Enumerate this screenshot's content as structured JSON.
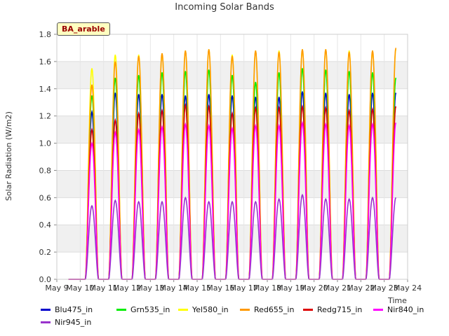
{
  "chart_data": {
    "type": "line",
    "title": "Incoming Solar Bands",
    "xlabel": "Time",
    "ylabel": "Solar Radiation (W/m2)",
    "annotation": "BA_arable",
    "ylim": [
      0,
      1.8
    ],
    "yticks": [
      "0.0",
      "0.2",
      "0.4",
      "0.6",
      "0.8",
      "1.0",
      "1.2",
      "1.4",
      "1.6",
      "1.8"
    ],
    "xticks": [
      "May 9",
      "May 10",
      "May 11",
      "May 12",
      "May 13",
      "May 14",
      "May 15",
      "May 16",
      "May 17",
      "May 18",
      "May 19",
      "May 20",
      "May 21",
      "May 22",
      "May 23",
      "May 24"
    ],
    "days": [
      "May 10",
      "May 11",
      "May 12",
      "May 13",
      "May 14",
      "May 15",
      "May 16",
      "May 17",
      "May 18",
      "May 19",
      "May 20",
      "May 21",
      "May 22",
      "May 23"
    ],
    "grid": "horizontal bands",
    "legend_position": "bottom",
    "series": [
      {
        "name": "Blu475_in",
        "color": "#0000cc",
        "daily_peaks": [
          1.23,
          1.37,
          1.36,
          1.36,
          1.35,
          1.36,
          1.35,
          1.34,
          1.34,
          1.38,
          1.37,
          1.36,
          1.37,
          1.37
        ]
      },
      {
        "name": "Grn535_in",
        "color": "#00ee00",
        "daily_peaks": [
          1.35,
          1.48,
          1.5,
          1.52,
          1.53,
          1.54,
          1.5,
          1.45,
          1.52,
          1.55,
          1.54,
          1.53,
          1.52,
          1.48
        ]
      },
      {
        "name": "Yel580_in",
        "color": "#ffff00",
        "daily_peaks": [
          1.55,
          1.65,
          1.65,
          1.66,
          1.68,
          1.69,
          1.65,
          1.68,
          1.68,
          1.69,
          1.69,
          1.68,
          1.68,
          1.69
        ]
      },
      {
        "name": "Red655_in",
        "color": "#ff9900",
        "daily_peaks": [
          1.43,
          1.6,
          1.64,
          1.66,
          1.68,
          1.69,
          1.64,
          1.68,
          1.67,
          1.69,
          1.69,
          1.67,
          1.68,
          1.7
        ]
      },
      {
        "name": "Redg715_in",
        "color": "#dd0000",
        "daily_peaks": [
          1.1,
          1.17,
          1.22,
          1.24,
          1.28,
          1.27,
          1.22,
          1.26,
          1.26,
          1.27,
          1.26,
          1.24,
          1.25,
          1.27
        ]
      },
      {
        "name": "Nir840_in",
        "color": "#ff00ff",
        "daily_peaks": [
          1.0,
          1.08,
          1.1,
          1.12,
          1.14,
          1.13,
          1.11,
          1.13,
          1.13,
          1.15,
          1.14,
          1.13,
          1.14,
          1.15
        ]
      },
      {
        "name": "Nir945_in",
        "color": "#9933cc",
        "daily_peaks": [
          0.54,
          0.58,
          0.57,
          0.57,
          0.6,
          0.57,
          0.57,
          0.57,
          0.59,
          0.62,
          0.59,
          0.59,
          0.6,
          0.6
        ]
      }
    ]
  }
}
